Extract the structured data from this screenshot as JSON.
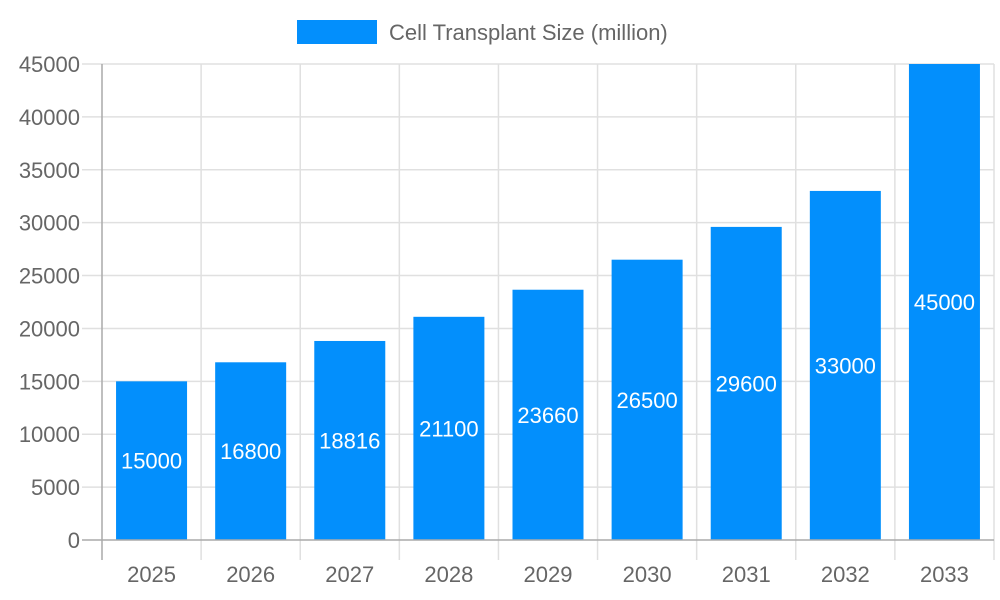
{
  "chart_data": {
    "type": "bar",
    "title": "",
    "xlabel": "",
    "ylabel": "",
    "categories": [
      "2025",
      "2026",
      "2027",
      "2028",
      "2029",
      "2030",
      "2031",
      "2032",
      "2033"
    ],
    "series": [
      {
        "name": "Cell Transplant Size (million)",
        "values": [
          15000,
          16800,
          18816,
          21100,
          23660,
          26500,
          29600,
          33000,
          45000
        ],
        "color": "#038ffc"
      }
    ],
    "ylim": [
      0,
      45000
    ],
    "yticks": [
      0,
      5000,
      10000,
      15000,
      20000,
      25000,
      30000,
      35000,
      40000,
      45000
    ],
    "grid": true,
    "legend": "top",
    "data_labels": true
  }
}
